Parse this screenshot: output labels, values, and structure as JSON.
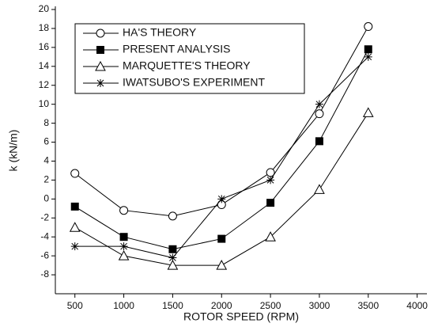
{
  "chart_data": {
    "type": "line",
    "x_label": "ROTOR SPEED (RPM)",
    "y_label": "k (kN/m)",
    "x": [
      500,
      1000,
      1500,
      2000,
      2500,
      3000,
      3500
    ],
    "series": [
      {
        "name": "HA'S THEORY",
        "color": "#000000",
        "marker": "circle",
        "values": [
          2.7,
          -1.2,
          -1.8,
          -0.6,
          2.8,
          9,
          18.2
        ]
      },
      {
        "name": "PRESENT ANALYSIS",
        "color": "#000000",
        "marker": "square",
        "values": [
          -0.8,
          -4,
          -5.3,
          -4.2,
          -0.4,
          6.1,
          15.8
        ]
      },
      {
        "name": "MARQUETTE'S THEORY",
        "color": "#000000",
        "marker": "triangle",
        "values": [
          -3,
          -6,
          -7,
          -7,
          -4,
          1,
          9.1
        ]
      },
      {
        "name": "IWATSUBO'S EXPERIMENT",
        "color": "#000000",
        "marker": "asterisk",
        "values": [
          -5,
          -5,
          -6.2,
          0,
          2,
          10,
          15
        ]
      }
    ],
    "xlim": [
      300,
      4100
    ],
    "xticks": [
      500,
      1000,
      1500,
      2000,
      2500,
      3000,
      3500,
      4000
    ],
    "ylim": [
      -10,
      20
    ],
    "yticks": [
      -8,
      -6,
      -4,
      -2,
      0,
      2,
      4,
      6,
      8,
      10,
      12,
      14,
      16,
      18,
      20
    ],
    "legend": "upper left"
  }
}
